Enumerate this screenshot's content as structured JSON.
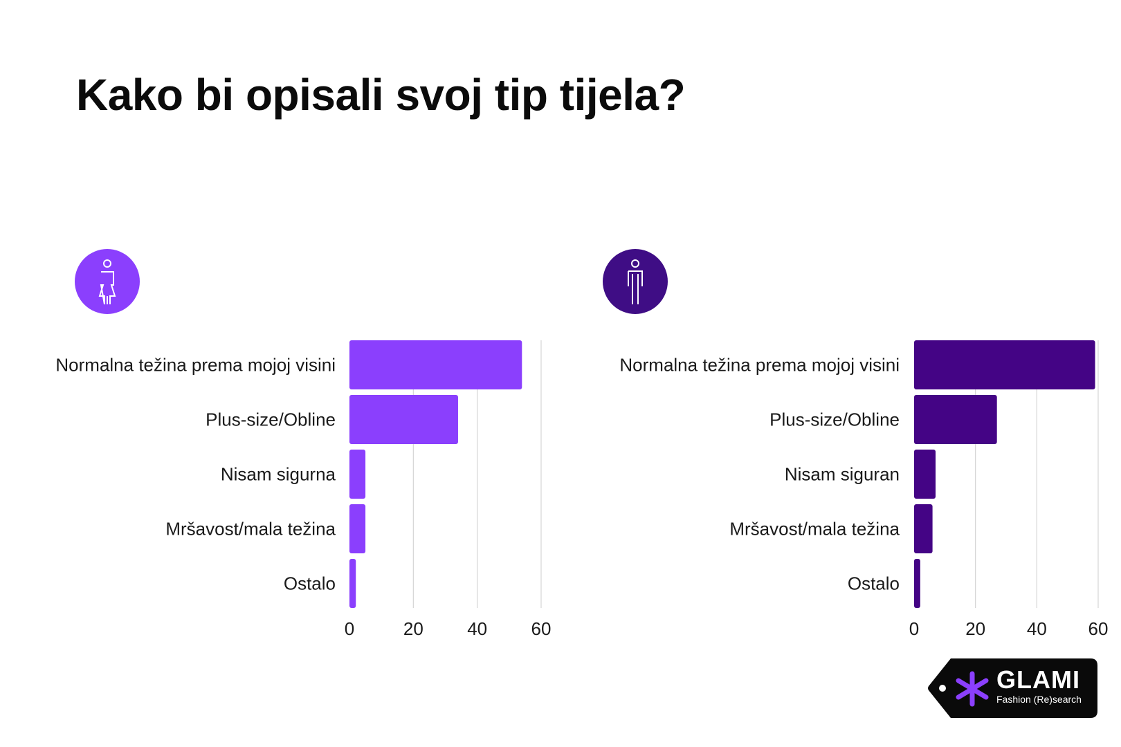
{
  "title": "Kako bi opisali svoj tip tijela?",
  "icons": {
    "left": {
      "name": "woman-icon",
      "color": "#8b3ffd"
    },
    "right": {
      "name": "man-icon",
      "color": "#3f0d85"
    }
  },
  "chart_data": [
    {
      "type": "bar",
      "orientation": "horizontal",
      "color": "#8b3ffd",
      "categories": [
        "Normalna težina prema mojoj visini",
        "Plus-size/Obline",
        "Nisam sigurna",
        "Mršavost/mala težina",
        "Ostalo"
      ],
      "values": [
        54,
        34,
        5,
        5,
        2
      ],
      "xlim": [
        0,
        60
      ],
      "xticks": [
        "0",
        "20",
        "40",
        "60"
      ],
      "grid": true
    },
    {
      "type": "bar",
      "orientation": "horizontal",
      "color": "#440485",
      "categories": [
        "Normalna težina prema mojoj visini",
        "Plus-size/Obline",
        "Nisam siguran",
        "Mršavost/mala težina",
        "Ostalo"
      ],
      "values": [
        59,
        27,
        7,
        6,
        2
      ],
      "xlim": [
        0,
        60
      ],
      "xticks": [
        "0",
        "20",
        "40",
        "60"
      ],
      "grid": true
    }
  ],
  "logo": {
    "brand": "GLAMI",
    "tagline": "Fashion (Re)search",
    "background": "#0a0a0a",
    "accent": "#8b3ffd"
  }
}
